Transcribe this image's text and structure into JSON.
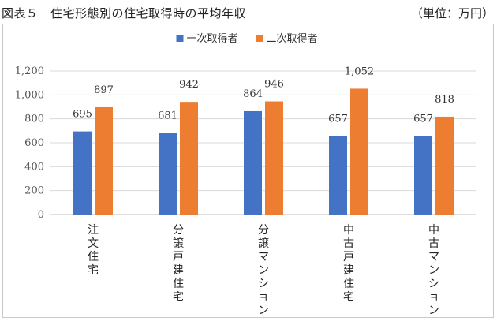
{
  "figure": {
    "title": "図表５　住宅形態別の住宅取得時の平均年収",
    "unit": "（単位：万円）"
  },
  "chart_data": {
    "type": "bar",
    "categories": [
      "注文住宅",
      "分譲戸建住宅",
      "分譲マンション",
      "中古戸建住宅",
      "中古マンション"
    ],
    "series": [
      {
        "name": "一次取得者",
        "color": "#4472C4",
        "values": [
          695,
          681,
          864,
          657,
          657
        ]
      },
      {
        "name": "二次取得者",
        "color": "#ED7D31",
        "values": [
          897,
          942,
          946,
          1052,
          818
        ]
      }
    ],
    "ylim": [
      0,
      1200
    ],
    "yticks": [
      0,
      200,
      400,
      600,
      800,
      1000,
      1200
    ],
    "ytick_labels": [
      "0",
      "200",
      "400",
      "600",
      "800",
      "1,000",
      "1,200"
    ],
    "data_labels": [
      [
        "695",
        "681",
        "864",
        "657",
        "657"
      ],
      [
        "897",
        "942",
        "946",
        "1,052",
        "818"
      ]
    ],
    "grid": true,
    "legend": "top"
  }
}
